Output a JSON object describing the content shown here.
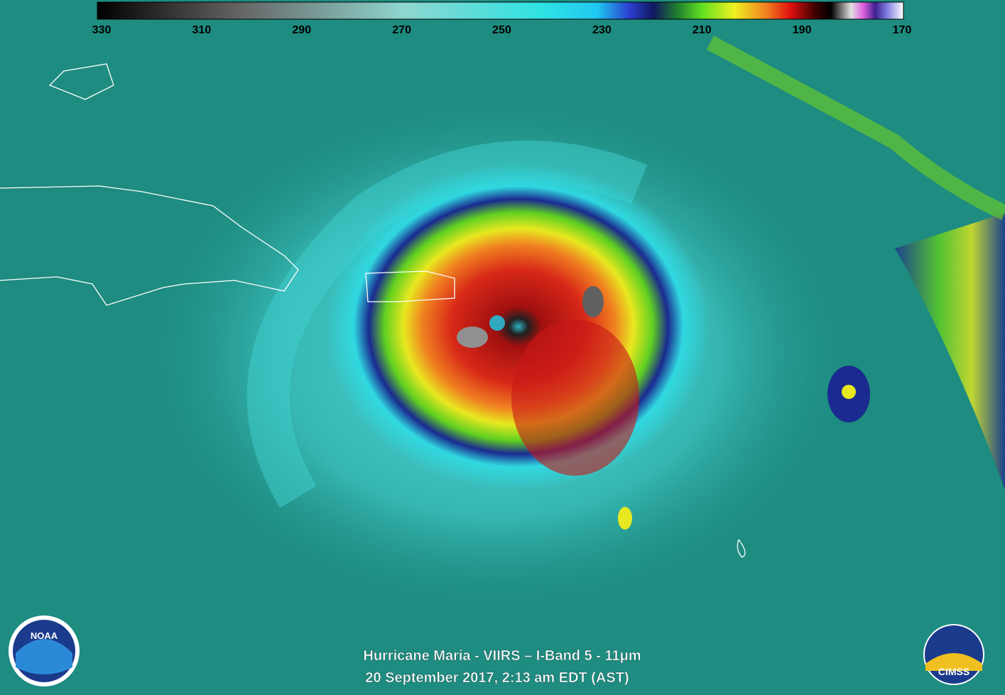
{
  "colorbar": {
    "ticks": [
      "330",
      "310",
      "290",
      "270",
      "250",
      "230",
      "210",
      "190",
      "170"
    ]
  },
  "caption": {
    "line1": "Hurricane Maria - VIIRS – I-Band 5 - 11μm",
    "line2": "20 September 2017, 2:13 am EDT (AST)"
  },
  "logos": {
    "noaa": "NOAA",
    "cimss": "CIMSS"
  }
}
